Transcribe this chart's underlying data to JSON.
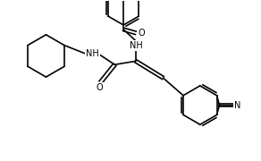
{
  "background_color": "#ffffff",
  "bond_color": "black",
  "line_width": 1.2,
  "figsize": [
    2.92,
    1.8
  ],
  "dpi": 100,
  "xlim": [
    0,
    292
  ],
  "ylim": [
    0,
    180
  ]
}
